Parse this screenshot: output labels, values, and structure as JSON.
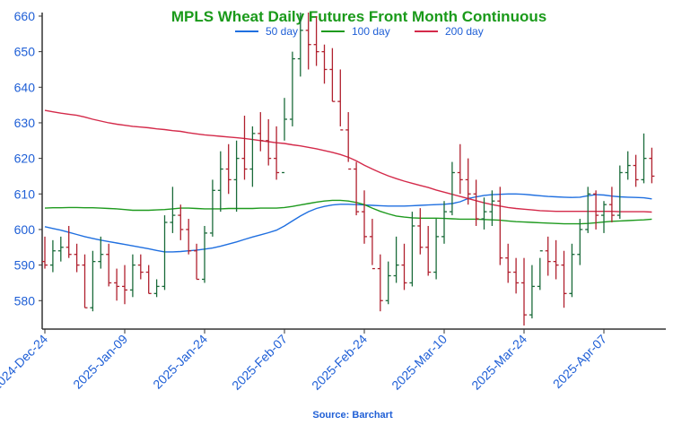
{
  "chart_data": {
    "type": "ohlc",
    "title": "MPLS Wheat Daily Futures Front Month Continuous",
    "source": "Source: Barchart",
    "ylim": [
      572,
      661
    ],
    "y_ticks": [
      580,
      590,
      600,
      610,
      620,
      630,
      640,
      650,
      660
    ],
    "x_ticks": [
      {
        "index": 0,
        "label": "2024-Dec-24"
      },
      {
        "index": 10,
        "label": "2025-Jan-09"
      },
      {
        "index": 20,
        "label": "2025-Jan-24"
      },
      {
        "index": 30,
        "label": "2025-Feb-07"
      },
      {
        "index": 40,
        "label": "2025-Feb-24"
      },
      {
        "index": 50,
        "label": "2025-Mar-10"
      },
      {
        "index": 60,
        "label": "2025-Mar-24"
      },
      {
        "index": 70,
        "label": "2025-Apr-07"
      }
    ],
    "legend": [
      {
        "name": "50 day",
        "color": "#1f6fe0"
      },
      {
        "name": "100 day",
        "color": "#1e9a1e"
      },
      {
        "name": "200 day",
        "color": "#d42a4a"
      }
    ],
    "up_color": "#1a6b3a",
    "down_color": "#b0202e",
    "bars": [
      [
        591,
        598,
        589,
        590
      ],
      [
        590,
        597,
        588,
        594
      ],
      [
        594,
        598,
        591,
        595
      ],
      [
        595,
        601,
        592,
        593
      ],
      [
        593,
        596,
        588,
        590
      ],
      [
        590,
        593,
        578,
        578
      ],
      [
        578,
        594,
        577,
        591
      ],
      [
        591,
        598,
        589,
        593
      ],
      [
        593,
        596,
        584,
        585
      ],
      [
        585,
        589,
        580,
        584
      ],
      [
        584,
        590,
        579,
        583
      ],
      [
        583,
        593,
        581,
        590
      ],
      [
        590,
        593,
        586,
        588
      ],
      [
        588,
        590,
        582,
        582
      ],
      [
        582,
        586,
        581,
        584
      ],
      [
        584,
        604,
        583,
        602
      ],
      [
        602,
        612,
        599,
        604
      ],
      [
        604,
        607,
        597,
        600
      ],
      [
        600,
        603,
        593,
        594
      ],
      [
        594,
        596,
        586,
        586
      ],
      [
        586,
        601,
        585,
        599
      ],
      [
        599,
        614,
        598,
        611
      ],
      [
        611,
        622,
        605,
        617
      ],
      [
        617,
        624,
        610,
        614
      ],
      [
        614,
        625,
        605,
        620
      ],
      [
        620,
        632,
        614,
        617
      ],
      [
        617,
        629,
        612,
        627
      ],
      [
        627,
        633,
        622,
        625
      ],
      [
        625,
        631,
        618,
        620
      ],
      [
        620,
        629,
        614,
        616
      ],
      [
        616,
        637,
        625,
        631
      ],
      [
        631,
        650,
        629,
        648
      ],
      [
        648,
        661,
        643,
        656
      ],
      [
        656,
        661,
        645,
        652
      ],
      [
        652,
        660,
        646,
        650
      ],
      [
        650,
        652,
        641,
        645
      ],
      [
        645,
        651,
        636,
        636
      ],
      [
        636,
        645,
        629,
        628
      ],
      [
        628,
        633,
        619,
        617
      ],
      [
        617,
        619,
        604,
        605
      ],
      [
        605,
        611,
        596,
        598
      ],
      [
        598,
        603,
        590,
        589
      ],
      [
        589,
        593,
        577,
        580
      ],
      [
        580,
        591,
        579,
        587
      ],
      [
        587,
        598,
        585,
        590
      ],
      [
        590,
        596,
        583,
        585
      ],
      [
        585,
        605,
        584,
        601
      ],
      [
        601,
        606,
        593,
        595
      ],
      [
        595,
        601,
        587,
        588
      ],
      [
        588,
        603,
        586,
        598
      ],
      [
        598,
        608,
        596,
        605
      ],
      [
        605,
        619,
        604,
        616
      ],
      [
        616,
        624,
        610,
        614
      ],
      [
        614,
        620,
        607,
        610
      ],
      [
        610,
        614,
        601,
        603
      ],
      [
        603,
        609,
        600,
        605
      ],
      [
        605,
        611,
        601,
        608
      ],
      [
        608,
        612,
        590,
        592
      ],
      [
        592,
        596,
        585,
        588
      ],
      [
        588,
        592,
        582,
        585
      ],
      [
        585,
        592,
        573,
        576
      ],
      [
        576,
        590,
        575,
        584
      ],
      [
        584,
        592,
        583,
        594
      ],
      [
        594,
        598,
        587,
        591
      ],
      [
        591,
        597,
        586,
        590
      ],
      [
        590,
        594,
        578,
        582
      ],
      [
        582,
        596,
        581,
        593
      ],
      [
        593,
        603,
        590,
        600
      ],
      [
        600,
        612,
        599,
        610
      ],
      [
        610,
        611,
        600,
        604
      ],
      [
        604,
        608,
        599,
        607
      ],
      [
        607,
        612,
        602,
        604
      ],
      [
        604,
        618,
        603,
        616
      ],
      [
        616,
        622,
        614,
        618
      ],
      [
        618,
        621,
        612,
        614
      ],
      [
        614,
        627,
        613,
        620
      ],
      [
        620,
        623,
        613,
        615
      ]
    ],
    "series": [
      {
        "name": "50 day",
        "color": "#1f6fe0",
        "values": [
          600.8,
          600.3,
          599.8,
          599.2,
          598.6,
          598.0,
          597.5,
          597.0,
          596.6,
          596.2,
          595.8,
          595.4,
          595.0,
          594.6,
          594.1,
          593.7,
          593.7,
          593.8,
          594.0,
          594.2,
          594.5,
          594.8,
          595.3,
          595.9,
          596.5,
          597.2,
          597.9,
          598.5,
          599.1,
          599.8,
          601.0,
          602.4,
          603.8,
          605.0,
          605.9,
          606.5,
          606.9,
          607.1,
          607.1,
          607.0,
          606.9,
          606.8,
          606.7,
          606.6,
          606.6,
          606.6,
          606.7,
          606.8,
          606.9,
          607.0,
          607.1,
          607.3,
          607.8,
          608.7,
          609.2,
          609.6,
          609.8,
          609.9,
          610.0,
          610.0,
          609.9,
          609.7,
          609.5,
          609.3,
          609.2,
          609.1,
          609.0,
          609.1,
          609.5,
          609.8,
          609.7,
          609.4,
          609.2,
          609.1,
          609.0,
          608.9,
          608.6
        ]
      },
      {
        "name": "100 day",
        "color": "#1e9a1e",
        "values": [
          606.0,
          606.1,
          606.1,
          606.2,
          606.2,
          606.1,
          606.1,
          606.0,
          605.9,
          605.8,
          605.6,
          605.4,
          605.4,
          605.4,
          605.5,
          605.6,
          605.8,
          606.0,
          606.0,
          605.9,
          605.8,
          605.8,
          605.8,
          605.9,
          605.9,
          605.9,
          605.9,
          606.0,
          606.0,
          606.0,
          606.2,
          606.5,
          606.9,
          607.3,
          607.7,
          608.0,
          608.2,
          608.2,
          608.0,
          607.6,
          607.0,
          606.0,
          605.1,
          604.4,
          603.8,
          603.5,
          603.3,
          603.2,
          603.2,
          603.2,
          603.1,
          603.0,
          602.9,
          602.9,
          602.9,
          602.8,
          602.7,
          602.6,
          602.4,
          602.2,
          602.1,
          602.0,
          601.9,
          601.8,
          601.7,
          601.6,
          601.6,
          601.6,
          601.7,
          601.9,
          602.1,
          602.3,
          602.4,
          602.5,
          602.6,
          602.7,
          602.9
        ]
      },
      {
        "name": "200 day",
        "color": "#d42a4a",
        "values": [
          633.5,
          633.1,
          632.7,
          632.4,
          632.1,
          631.6,
          631.0,
          630.5,
          630.0,
          629.6,
          629.3,
          629.0,
          628.8,
          628.6,
          628.3,
          628.1,
          627.8,
          627.6,
          627.2,
          626.9,
          626.6,
          626.4,
          626.2,
          626.0,
          625.8,
          625.6,
          625.3,
          625.0,
          624.7,
          624.4,
          624.2,
          623.8,
          623.5,
          623.1,
          622.7,
          622.2,
          621.7,
          621.1,
          620.3,
          619.3,
          618.1,
          617.0,
          616.0,
          615.1,
          614.3,
          613.6,
          613.0,
          612.4,
          611.8,
          611.1,
          610.5,
          609.9,
          609.3,
          608.7,
          608.1,
          607.5,
          607.0,
          606.6,
          606.2,
          605.9,
          605.7,
          605.5,
          605.3,
          605.2,
          605.1,
          605.1,
          605.1,
          605.1,
          605.1,
          605.1,
          605.1,
          605.1,
          605.0,
          605.0,
          605.0,
          605.0,
          604.9
        ]
      }
    ]
  }
}
